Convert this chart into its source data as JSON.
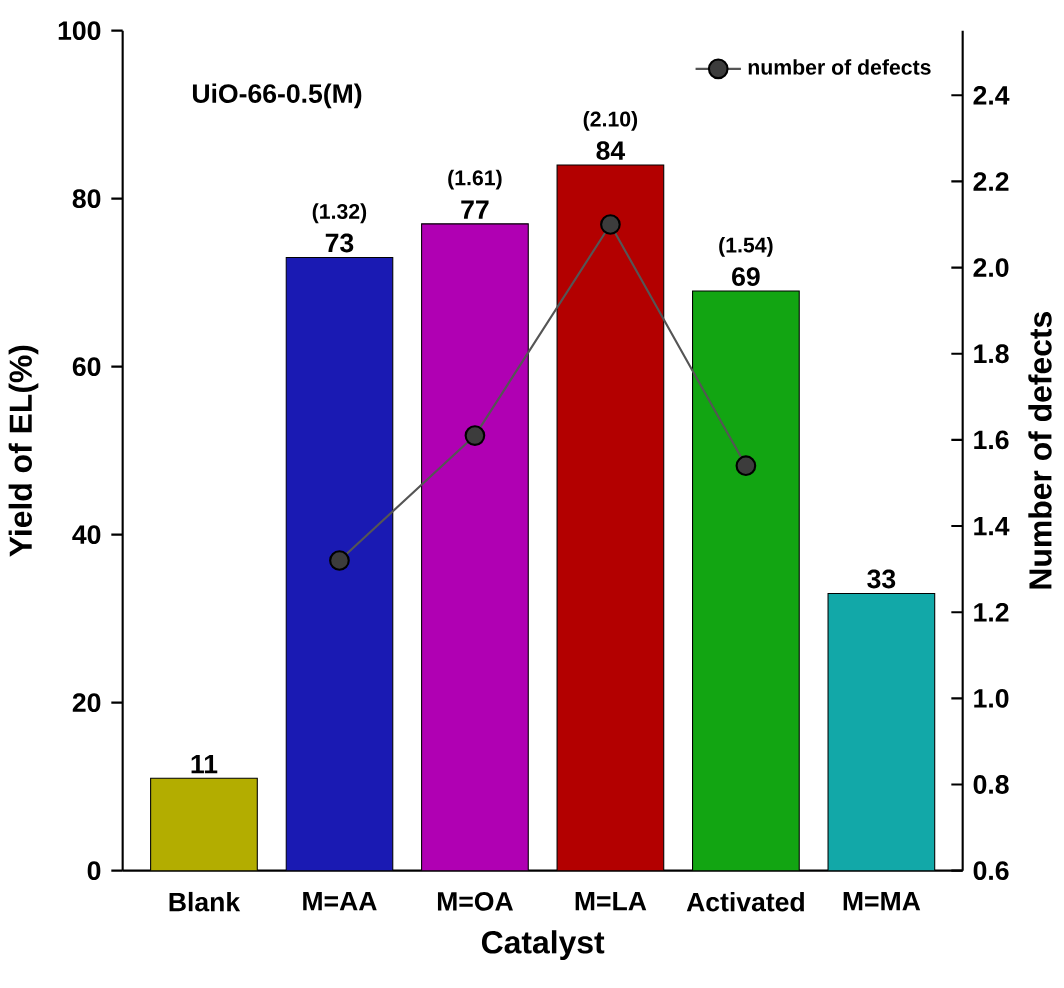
{
  "chart_data": {
    "type": "bar",
    "title": "UiO-66-0.5(M)",
    "xlabel": "Catalyst",
    "ylabel": "Yield of EL(%)",
    "y2label": "Number of defects",
    "categories": [
      "Blank",
      "M=AA",
      "M=OA",
      "M=LA",
      "Activated",
      "M=MA"
    ],
    "series": [
      {
        "colors": [
          "#b3ad00",
          "#1a1ab3",
          "#b000b3",
          "#b30000",
          "#12a512",
          "#12a8a8"
        ],
        "values": [
          11,
          73,
          77,
          84,
          69,
          33
        ],
        "value_labels": [
          "11",
          "73",
          "77",
          "84",
          "69",
          "33"
        ]
      },
      {
        "type": "line",
        "name": "number of defects",
        "axis": "y2",
        "color": "#555555",
        "marker": "circle",
        "values": [
          null,
          1.32,
          1.61,
          2.1,
          1.54,
          null
        ]
      }
    ],
    "annotations": [
      {
        "text": "(1.32)",
        "x": "M=AA",
        "y": 73
      },
      {
        "text": "(1.61)",
        "x": "M=OA",
        "y": 77
      },
      {
        "text": "(2.10)",
        "x": "M=LA",
        "y": 84
      },
      {
        "text": "(1.54)",
        "x": "Activated",
        "y": 69
      }
    ],
    "ylim": [
      0,
      100
    ],
    "yticks": [
      0,
      20,
      40,
      60,
      80,
      100
    ],
    "y2lim": [
      0.6,
      2.55
    ],
    "y2ticks": [
      0.6,
      0.8,
      {
        "value": 1.0,
        "label": "1.0"
      },
      1.2,
      1.4,
      1.6,
      1.8,
      {
        "value": 2.0,
        "label": "2.0"
      },
      2.2,
      2.4
    ],
    "legend": "top right",
    "grid": false
  }
}
